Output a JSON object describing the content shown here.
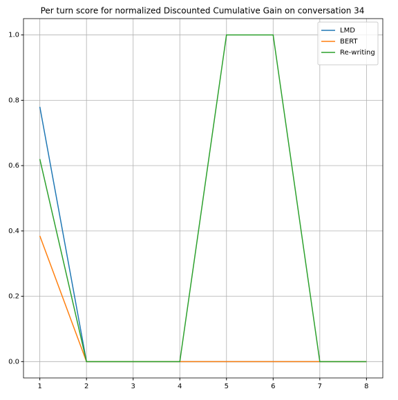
{
  "chart_data": {
    "type": "line",
    "title": "Per turn score for normalized Discounted Cumulative Gain on conversation 34",
    "x": [
      1,
      2,
      3,
      4,
      5,
      6,
      7,
      8
    ],
    "series": [
      {
        "name": "LMD",
        "color": "#1f77b4",
        "values": [
          0.78,
          0,
          0,
          0,
          0,
          0,
          0,
          0
        ]
      },
      {
        "name": "BERT",
        "color": "#ff7f0e",
        "values": [
          0.385,
          0,
          0,
          0,
          0,
          0,
          0,
          0
        ]
      },
      {
        "name": "Re-writing",
        "color": "#2ca02c",
        "values": [
          0.62,
          0,
          0,
          0,
          1,
          1,
          0,
          0
        ]
      }
    ],
    "xlim": [
      0.65,
      8.35
    ],
    "ylim": [
      -0.05,
      1.05
    ],
    "xticks": [
      1,
      2,
      3,
      4,
      5,
      6,
      7,
      8
    ],
    "yticks": [
      {
        "value": 0,
        "label": "0.0"
      },
      {
        "value": 0.2,
        "label": "0.2"
      },
      {
        "value": 0.4,
        "label": "0.4"
      },
      {
        "value": 0.6,
        "label": "0.6"
      },
      {
        "value": 0.8,
        "label": "0.8"
      },
      {
        "value": 1,
        "label": "1.0"
      }
    ],
    "grid": true,
    "legend": "upper-right"
  }
}
